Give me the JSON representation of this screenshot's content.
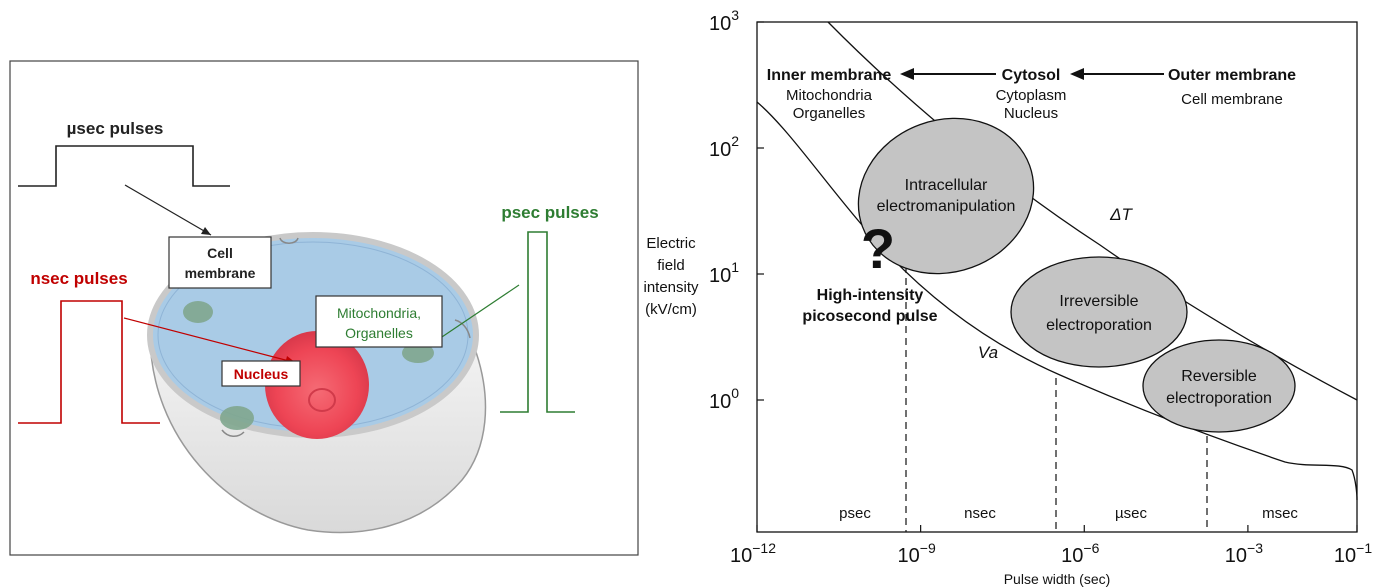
{
  "left": {
    "usec_label": "µsec pulses",
    "nsec_label": "nsec pulses",
    "psec_label": "psec pulses",
    "cell_membrane_line1": "Cell",
    "cell_membrane_line2": "membrane",
    "mito_line1": "Mitochondria,",
    "mito_line2": "Organelles",
    "nucleus_label": "Nucleus",
    "colors": {
      "usec": "#222222",
      "nsec": "#c00000",
      "psec": "#2e7d32",
      "cell_fill": "#a9cbe6",
      "nucleus": "#ef4a58",
      "organelle": "#7fa68e"
    }
  },
  "chart_data": {
    "type": "diagram-chart",
    "x_scale": "log",
    "y_scale": "log",
    "xlabel": "Pulse width (sec)",
    "ylabel_lines": [
      "Electric",
      "field",
      "intensity",
      "(kV/cm)"
    ],
    "x_ticks": [
      {
        "base": "10",
        "exp": "−12",
        "value": 1e-12
      },
      {
        "base": "10",
        "exp": "−9",
        "value": 1e-09
      },
      {
        "base": "10",
        "exp": "−6",
        "value": 1e-06
      },
      {
        "base": "10",
        "exp": "−3",
        "value": 0.001
      },
      {
        "base": "10",
        "exp": "−1",
        "value": 0.1
      }
    ],
    "y_ticks": [
      {
        "base": "10",
        "exp": "3",
        "value": 1000
      },
      {
        "base": "10",
        "exp": "2",
        "value": 100
      },
      {
        "base": "10",
        "exp": "1",
        "value": 10
      },
      {
        "base": "10",
        "exp": "0",
        "value": 1
      }
    ],
    "regimes": [
      "psec",
      "nsec",
      "µsec",
      "msec"
    ],
    "top_labels": {
      "inner_title": "Inner membrane",
      "inner_sub1": "Mitochondria",
      "inner_sub2": "Organelles",
      "cytosol_title": "Cytosol",
      "cytosol_sub1": "Cytoplasm",
      "cytosol_sub2": "Nucleus",
      "outer_title": "Outer membrane",
      "outer_sub1": "Cell membrane"
    },
    "ellipses": [
      {
        "line1": "Intracellular",
        "line2": "electromanipulation"
      },
      {
        "line1": "Irreversible",
        "line2": "electroporation"
      },
      {
        "line1": "Reversible",
        "line2": "electroporation"
      }
    ],
    "question_mark": "?",
    "hi_label_1": "High-intensity",
    "hi_label_2": "picosecond pulse",
    "curve_upper_label": "ΔT",
    "curve_lower_label": "Va"
  }
}
